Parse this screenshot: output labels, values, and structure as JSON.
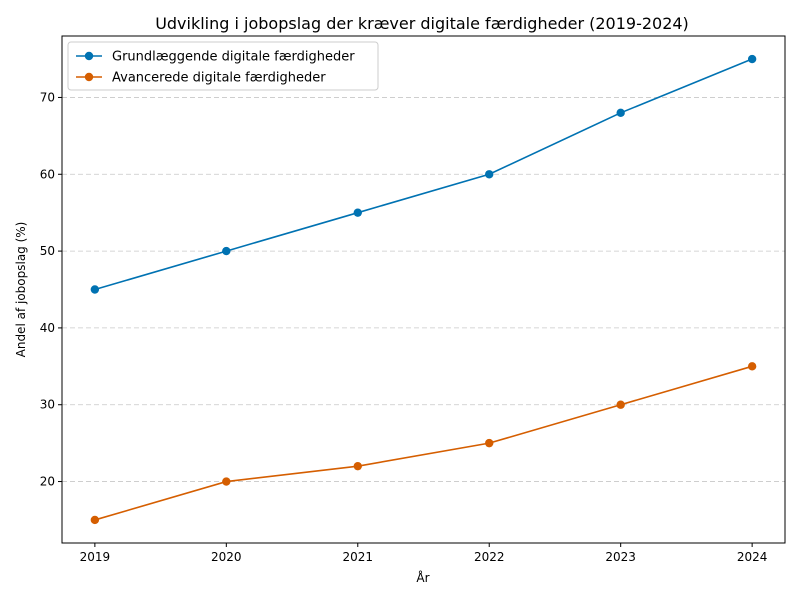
{
  "chart_data": {
    "type": "line",
    "title": "Udvikling i jobopslag der kræver digitale færdigheder (2019-2024)",
    "xlabel": "År",
    "ylabel": "Andel af jobopslag (%)",
    "x": [
      "2019",
      "2020",
      "2021",
      "2022",
      "2023",
      "2024"
    ],
    "xlim": [
      2018.75,
      2024.25
    ],
    "ylim": [
      12,
      78
    ],
    "yticks": [
      20,
      30,
      40,
      50,
      60,
      70
    ],
    "grid": "y, dashed",
    "legend": "top-left",
    "series": [
      {
        "name": "Grundlæggende digitale færdigheder",
        "color": "#0072b2",
        "values": [
          45,
          50,
          55,
          60,
          68,
          75
        ]
      },
      {
        "name": "Avancerede digitale færdigheder",
        "color": "#d55e00",
        "values": [
          15,
          20,
          22,
          25,
          30,
          35
        ]
      }
    ]
  }
}
